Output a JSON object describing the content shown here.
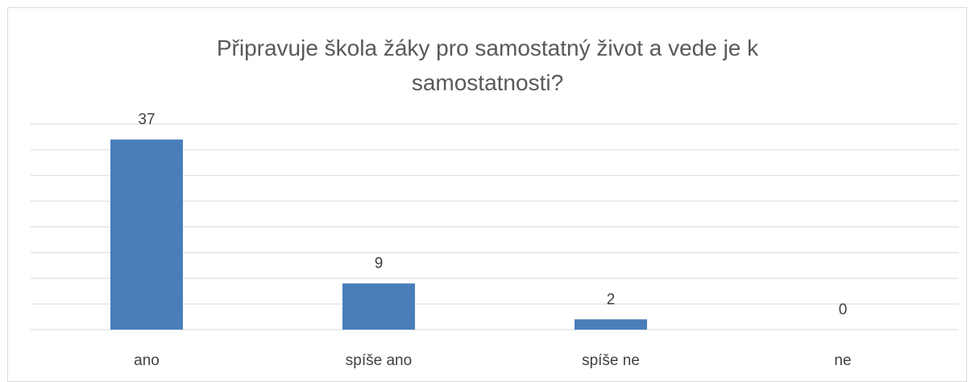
{
  "chart_data": {
    "type": "bar",
    "title": "Připravuje škola žáky pro samostatný život a vede je k samostatnosti?",
    "categories": [
      "ano",
      "spíše ano",
      "spíše ne",
      "ne"
    ],
    "values": [
      37,
      9,
      2,
      0
    ],
    "color": "#4a7ebb",
    "ylim": [
      0,
      40
    ],
    "yticks": [
      0,
      5,
      10,
      15,
      20,
      25,
      30,
      35,
      40
    ],
    "grid": true
  }
}
